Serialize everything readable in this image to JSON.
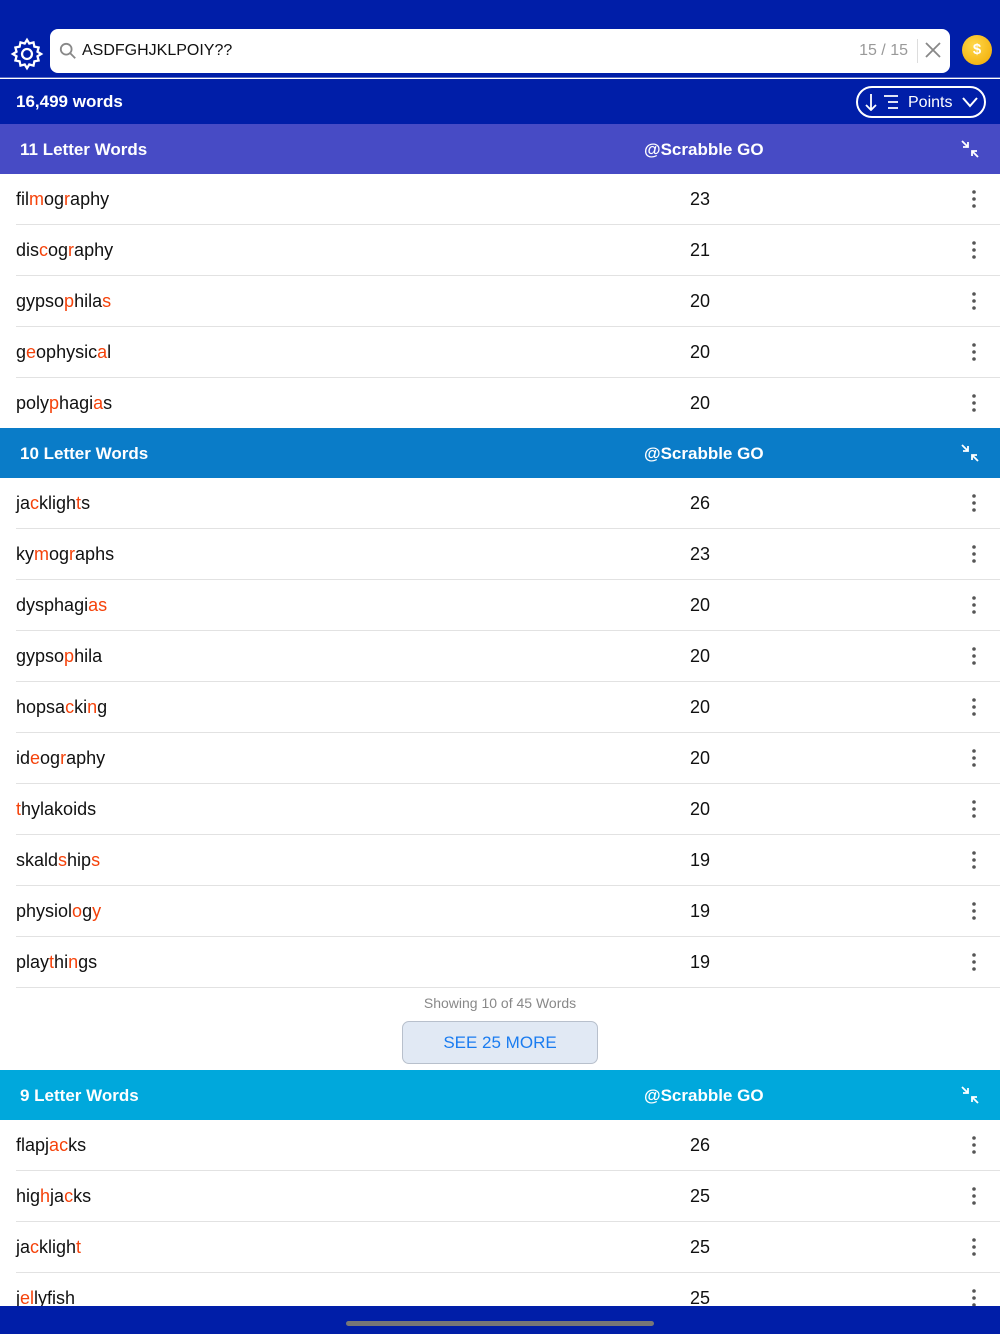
{
  "search": {
    "query": "ASDFGHJKLPOIY??",
    "match_count": "15 / 15"
  },
  "header": {
    "word_count": "16,499 words",
    "sort_label": "Points"
  },
  "colors": {
    "topbar": "#001ea8",
    "highlight": "#f5420a",
    "sec11": "#474bc5",
    "sec10": "#0a7cc8",
    "sec9": "#00a8dc",
    "link": "#1a7cf0"
  },
  "sections": [
    {
      "title": "11 Letter Words",
      "source": "@Scrabble GO",
      "color": "#474bc5",
      "words": [
        {
          "word": "filmography",
          "marked": [
            3,
            6
          ],
          "points": "23"
        },
        {
          "word": "discography",
          "marked": [
            3,
            6
          ],
          "points": "21"
        },
        {
          "word": "gypsophilas",
          "marked": [
            5,
            10
          ],
          "points": "20"
        },
        {
          "word": "geophysical",
          "marked": [
            1,
            9
          ],
          "points": "20"
        },
        {
          "word": "polyphagias",
          "marked": [
            4,
            9
          ],
          "points": "20"
        }
      ]
    },
    {
      "title": "10 Letter Words",
      "source": "@Scrabble GO",
      "color": "#0a7cc8",
      "words": [
        {
          "word": "jacklights",
          "marked": [
            2,
            8
          ],
          "points": "26"
        },
        {
          "word": "kymographs",
          "marked": [
            2,
            5
          ],
          "points": "23"
        },
        {
          "word": "dysphagias",
          "marked": [
            8,
            9
          ],
          "points": "20"
        },
        {
          "word": "gypsophila",
          "marked": [
            5
          ],
          "points": "20"
        },
        {
          "word": "hopsacking",
          "marked": [
            5,
            8
          ],
          "points": "20"
        },
        {
          "word": "ideography",
          "marked": [
            2,
            5
          ],
          "points": "20"
        },
        {
          "word": "thylakoids",
          "marked": [
            0
          ],
          "points": "20"
        },
        {
          "word": "skaldships",
          "marked": [
            5,
            9
          ],
          "points": "19"
        },
        {
          "word": "physiology",
          "marked": [
            7,
            9
          ],
          "points": "19"
        },
        {
          "word": "playthings",
          "marked": [
            4,
            7
          ],
          "points": "19"
        }
      ],
      "showing": "Showing 10 of 45 Words",
      "more_label": "SEE 25 MORE"
    },
    {
      "title": "9 Letter Words",
      "source": "@Scrabble GO",
      "color": "#00a8dc",
      "words": [
        {
          "word": "flapjacks",
          "marked": [
            5,
            6
          ],
          "points": "26"
        },
        {
          "word": "highjacks",
          "marked": [
            3,
            6
          ],
          "points": "25"
        },
        {
          "word": "jacklight",
          "marked": [
            2,
            8
          ],
          "points": "25"
        },
        {
          "word": "jellyfish",
          "marked": [
            1,
            2
          ],
          "points": "25"
        }
      ]
    }
  ]
}
